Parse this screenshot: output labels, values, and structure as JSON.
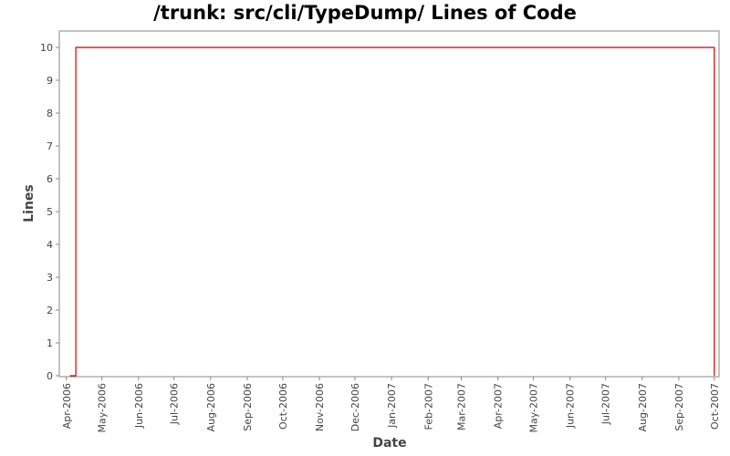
{
  "chart_data": {
    "type": "line",
    "title": "/trunk: src/cli/TypeDump/ Lines of Code",
    "xlabel": "Date",
    "ylabel": "Lines",
    "ylim": [
      0,
      10.5
    ],
    "xlim": [
      "2006-03-26",
      "2007-10-05"
    ],
    "y_ticks": [
      0,
      1,
      2,
      3,
      4,
      5,
      6,
      7,
      8,
      9,
      10
    ],
    "x_ticks": [
      {
        "date": "2006-04-01",
        "label": "Apr-2006"
      },
      {
        "date": "2006-05-01",
        "label": "May-2006"
      },
      {
        "date": "2006-06-01",
        "label": "Jun-2006"
      },
      {
        "date": "2006-07-01",
        "label": "Jul-2006"
      },
      {
        "date": "2006-08-01",
        "label": "Aug-2006"
      },
      {
        "date": "2006-09-01",
        "label": "Sep-2006"
      },
      {
        "date": "2006-10-01",
        "label": "Oct-2006"
      },
      {
        "date": "2006-11-01",
        "label": "Nov-2006"
      },
      {
        "date": "2006-12-01",
        "label": "Dec-2006"
      },
      {
        "date": "2007-01-01",
        "label": "Jan-2007"
      },
      {
        "date": "2007-02-01",
        "label": "Feb-2007"
      },
      {
        "date": "2007-03-01",
        "label": "Mar-2007"
      },
      {
        "date": "2007-04-01",
        "label": "Apr-2007"
      },
      {
        "date": "2007-05-01",
        "label": "May-2007"
      },
      {
        "date": "2007-06-01",
        "label": "Jun-2007"
      },
      {
        "date": "2007-07-01",
        "label": "Jul-2007"
      },
      {
        "date": "2007-08-01",
        "label": "Aug-2007"
      },
      {
        "date": "2007-09-01",
        "label": "Sep-2007"
      },
      {
        "date": "2007-10-01",
        "label": "Oct-2007"
      }
    ],
    "series": [
      {
        "color": "#cc0000",
        "step": true,
        "points": [
          {
            "x": "2006-04-04",
            "y": 0
          },
          {
            "x": "2006-04-09",
            "y": 0
          },
          {
            "x": "2006-04-09",
            "y": 10
          },
          {
            "x": "2007-10-01",
            "y": 10
          },
          {
            "x": "2007-10-01",
            "y": 0
          }
        ]
      }
    ],
    "grid": false,
    "legend": "none"
  }
}
